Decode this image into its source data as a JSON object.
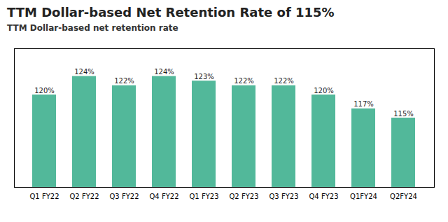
{
  "chart_data": {
    "type": "bar",
    "title": "TTM Dollar-based Net Retention Rate of 115%",
    "subtitle": "TTM Dollar-based net retention rate",
    "categories": [
      "Q1 FY22",
      "Q2 FY22",
      "Q3 FY22",
      "Q4 FY22",
      "Q1 FY23",
      "Q2 FY23",
      "Q3 FY23",
      "Q4 FY23",
      "Q1FY24",
      "Q2FY24"
    ],
    "values": [
      120,
      124,
      122,
      124,
      123,
      122,
      122,
      120,
      117,
      115
    ],
    "value_labels": [
      "120%",
      "124%",
      "122%",
      "124%",
      "123%",
      "122%",
      "122%",
      "120%",
      "117%",
      "115%"
    ],
    "data_labels": true,
    "color": "#52b89a",
    "ylim": [
      100,
      130
    ],
    "tick_labels": "x",
    "grid": false
  }
}
